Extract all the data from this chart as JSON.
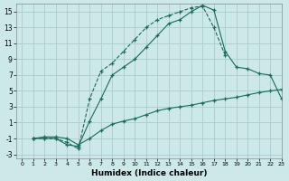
{
  "background_color": "#cce8e8",
  "grid_color": "#aacccc",
  "line_color": "#1a6b5a",
  "xlabel": "Humidex (Indice chaleur)",
  "xlim": [
    -0.5,
    23
  ],
  "ylim": [
    -3.5,
    16
  ],
  "xticks": [
    0,
    1,
    2,
    3,
    4,
    5,
    6,
    7,
    8,
    9,
    10,
    11,
    12,
    13,
    14,
    15,
    16,
    17,
    18,
    19,
    20,
    21,
    22,
    23
  ],
  "yticks": [
    -3,
    -1,
    1,
    3,
    5,
    7,
    9,
    11,
    13,
    15
  ],
  "line1_x": [
    1,
    2,
    3,
    4,
    5,
    6,
    7,
    8,
    9,
    10,
    11,
    12,
    13,
    14,
    15,
    16,
    17,
    18
  ],
  "line1_y": [
    -1,
    -1,
    -1,
    -1.5,
    -2.3,
    4,
    7.5,
    8.5,
    10,
    11.5,
    13,
    14,
    14.5,
    15,
    15.5,
    15.7,
    13,
    9.5
  ],
  "line2_x": [
    1,
    2,
    3,
    4,
    5,
    6,
    7,
    8,
    9,
    10,
    11,
    12,
    13,
    14,
    15,
    16,
    17,
    18,
    19,
    20,
    21,
    22,
    23
  ],
  "line2_y": [
    -1,
    -1,
    -1,
    -1.8,
    -2,
    1.2,
    4,
    7,
    8,
    9,
    10.5,
    12,
    13.5,
    14,
    15,
    15.8,
    15.2,
    10,
    8,
    7.8,
    7.2,
    7,
    4
  ],
  "line3_x": [
    1,
    2,
    3,
    4,
    5,
    6,
    7,
    8,
    9,
    10,
    11,
    12,
    13,
    14,
    15,
    16,
    17,
    18,
    19,
    20,
    21,
    22,
    23
  ],
  "line3_y": [
    -1,
    -0.8,
    -0.8,
    -1,
    -1.8,
    -1,
    0,
    0.8,
    1.2,
    1.5,
    2,
    2.5,
    2.8,
    3,
    3.2,
    3.5,
    3.8,
    4,
    4.2,
    4.5,
    4.8,
    5,
    5.2
  ]
}
